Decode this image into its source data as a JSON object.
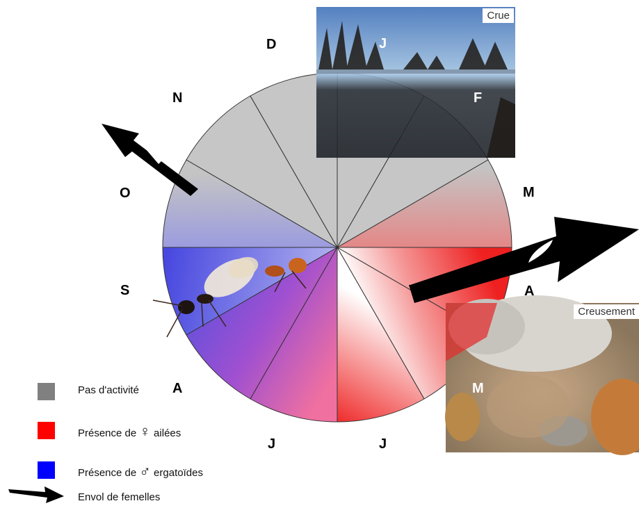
{
  "months": {
    "j1": "J",
    "f": "F",
    "m1": "M",
    "a1": "A",
    "m2": "M",
    "j2": "J",
    "j3": "J",
    "a2": "A",
    "s": "S",
    "o": "O",
    "n": "N",
    "d": "D"
  },
  "photos": {
    "flood": {
      "label": "Crue"
    },
    "dig": {
      "label": "Creusement"
    }
  },
  "legend": {
    "inactive": {
      "text": "Pas d'activité",
      "color": "#808080"
    },
    "winged_females": {
      "prefix": "Présence de ",
      "symbol": "♀",
      "suffix": " ailées",
      "color": "#ff0000"
    },
    "ergatoid_males": {
      "prefix": "Présence de ",
      "symbol": "♂",
      "suffix": " ergatoïdes",
      "color": "#0000ff"
    },
    "flight": {
      "text": "Envol de femelles"
    }
  }
}
